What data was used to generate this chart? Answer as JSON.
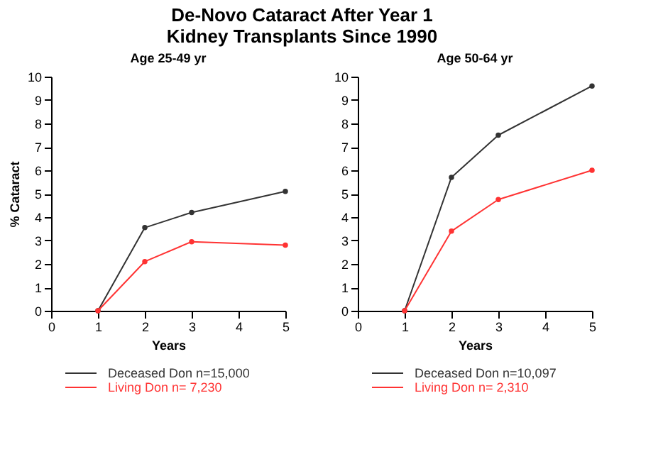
{
  "chart_data": [
    {
      "type": "line",
      "title": "De-Novo Cataract After Year 1\nKidney Transplants Since 1990",
      "subtitle": "Age 25-49 yr",
      "xlabel": "Years",
      "ylabel": "% Cataract",
      "xlim": [
        0,
        5
      ],
      "xticks": [
        0,
        1,
        2,
        3,
        4,
        5
      ],
      "ylim": [
        0,
        10
      ],
      "yticks": [
        0,
        1,
        2,
        3,
        4,
        5,
        6,
        7,
        8,
        9,
        10
      ],
      "grid": false,
      "legend": "bottom",
      "marker": "circle",
      "x": [
        1,
        2,
        3,
        5
      ],
      "series": [
        {
          "name": "Deceased Don  n=15,000",
          "color": "#333333",
          "values": [
            0,
            3.55,
            4.2,
            5.1
          ]
        },
        {
          "name": "Living Don  n=  7,230",
          "color": "#ff3333",
          "values": [
            0,
            2.1,
            2.95,
            2.8
          ]
        }
      ]
    },
    {
      "type": "line",
      "subtitle": "Age 50-64 yr",
      "xlabel": "Years",
      "xlim": [
        0,
        5
      ],
      "xticks": [
        0,
        1,
        2,
        3,
        4,
        5
      ],
      "ylim": [
        0,
        10
      ],
      "yticks": [
        0,
        1,
        2,
        3,
        4,
        5,
        6,
        7,
        8,
        9,
        10
      ],
      "grid": false,
      "legend": "bottom",
      "marker": "circle",
      "x": [
        1,
        2,
        3,
        5
      ],
      "series": [
        {
          "name": "Deceased Don  n=10,097",
          "color": "#333333",
          "values": [
            0,
            5.7,
            7.5,
            9.6
          ]
        },
        {
          "name": "Living Don  n=  2,310",
          "color": "#ff3333",
          "values": [
            0,
            3.4,
            4.75,
            6.0
          ]
        }
      ]
    }
  ]
}
